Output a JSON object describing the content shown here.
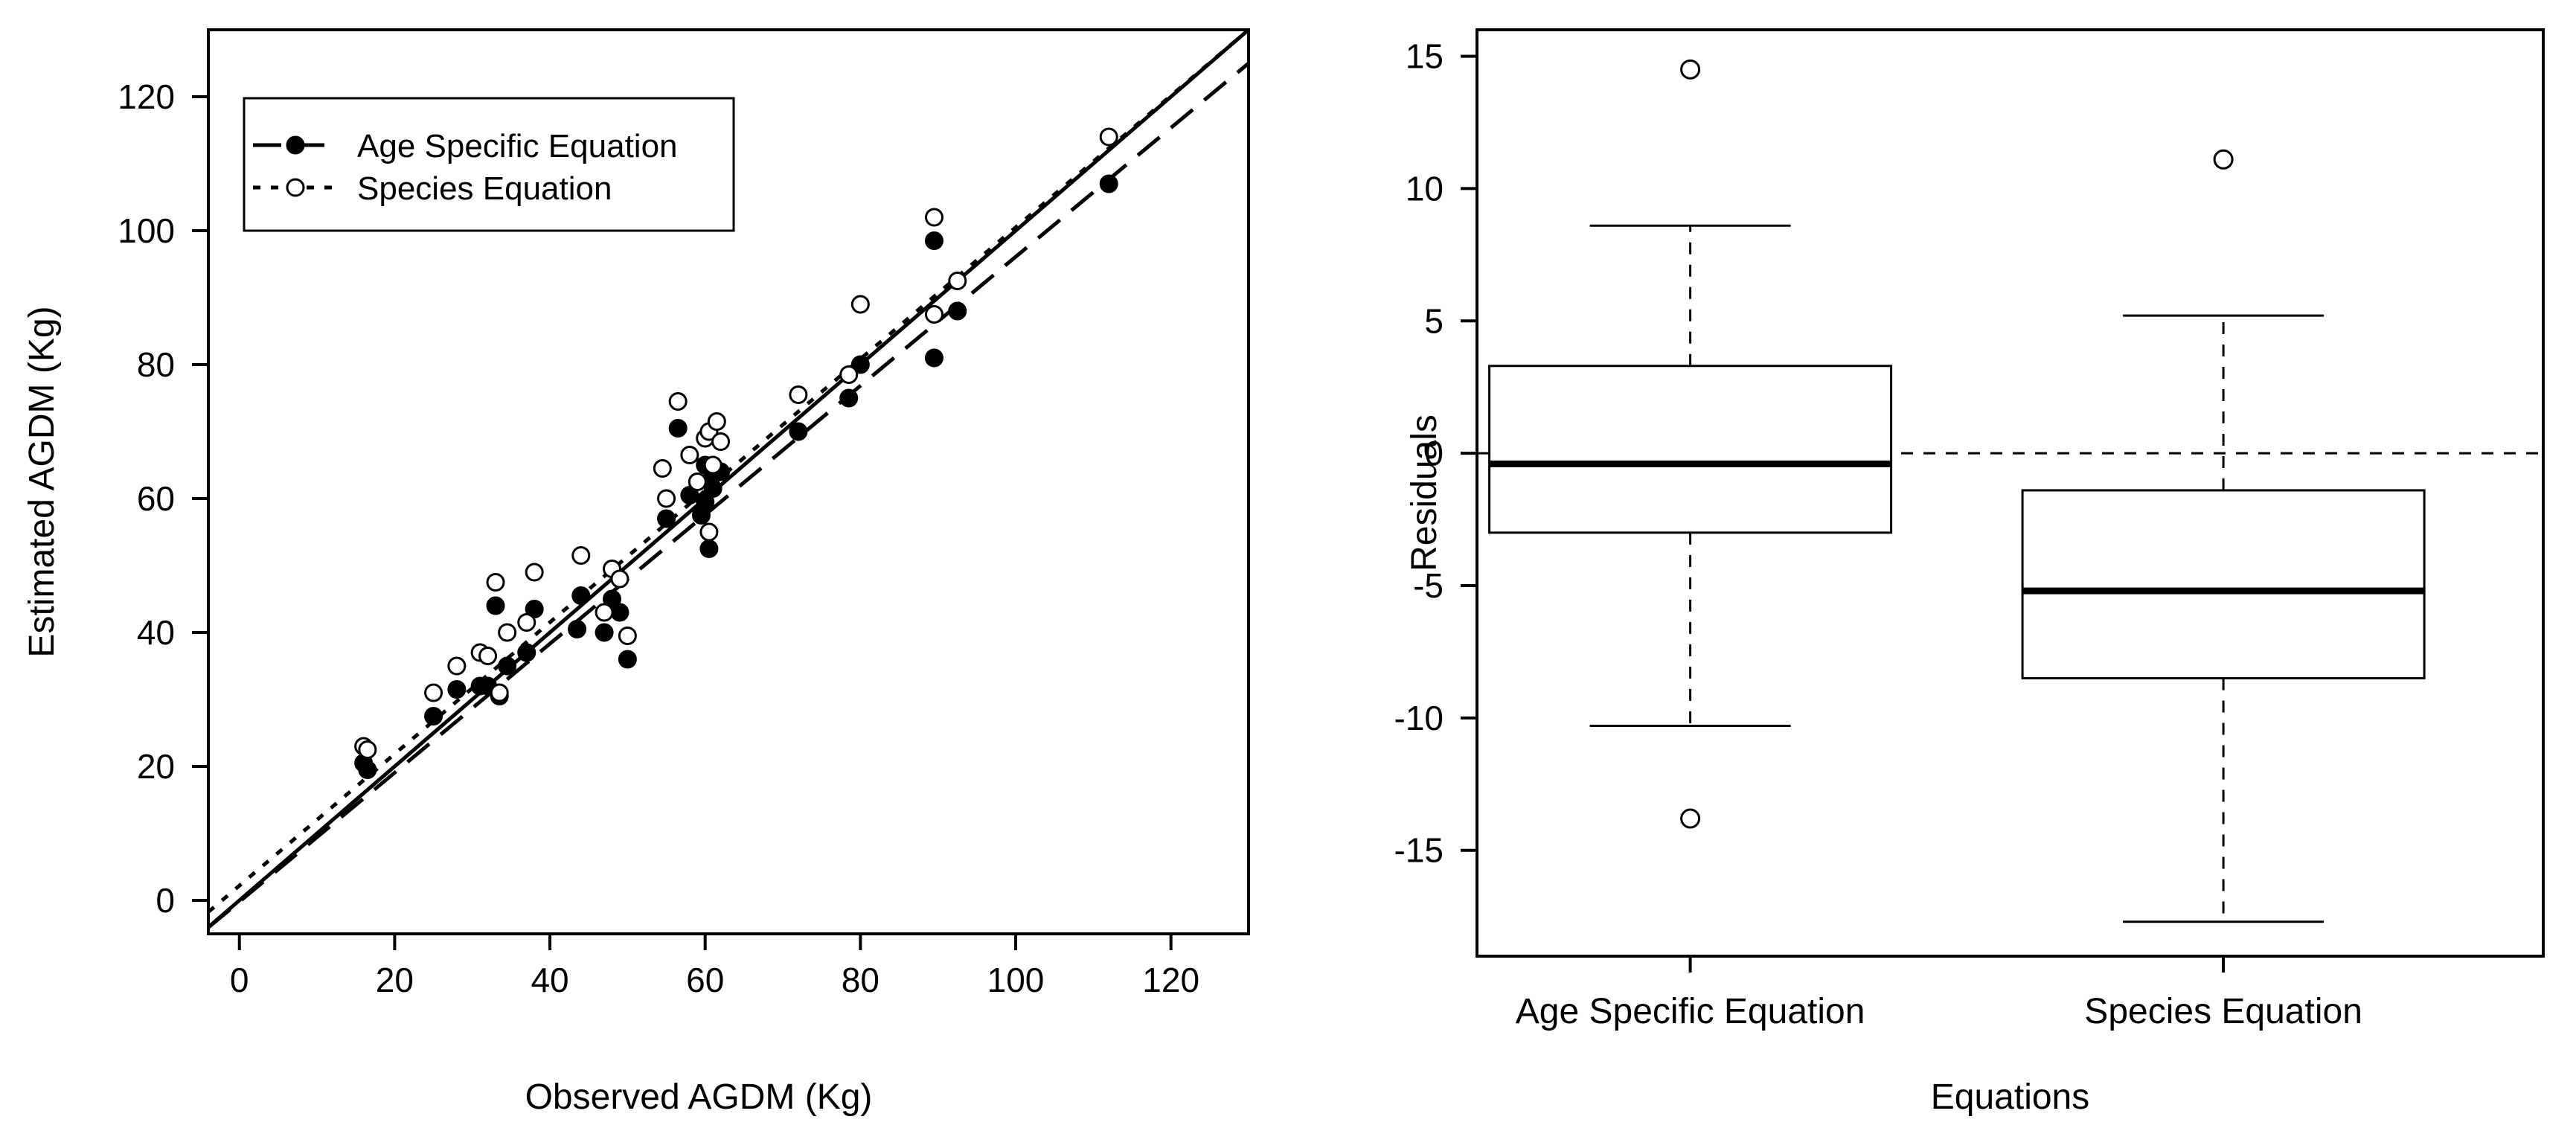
{
  "chart_data": [
    {
      "type": "scatter",
      "xlabel": "Observed AGDM  (Kg)",
      "ylabel": "Estimated AGDM (Kg)",
      "xlim": [
        -4,
        130
      ],
      "ylim": [
        -5,
        130
      ],
      "xticks": [
        0,
        20,
        40,
        60,
        80,
        100,
        120
      ],
      "yticks": [
        0,
        20,
        40,
        60,
        80,
        100,
        120
      ],
      "legend": {
        "position": "top-left",
        "entries": [
          {
            "label": "Age Specific Equation",
            "marker": "filled-circle",
            "line": "long-dash"
          },
          {
            "label": "Species Equation",
            "marker": "open-circle",
            "line": "dotted"
          }
        ]
      },
      "reference_lines": [
        {
          "name": "1:1 line",
          "style": "solid",
          "intercept": 0,
          "slope": 1
        },
        {
          "name": "Age Specific Equation fit",
          "style": "dashed",
          "intercept": -0.2,
          "slope": 0.963
        },
        {
          "name": "Species Equation fit",
          "style": "dotted",
          "intercept": 2.2,
          "slope": 0.983
        }
      ],
      "series": [
        {
          "name": "Age Specific Equation",
          "marker": "filled",
          "points": [
            [
              16,
              20.5
            ],
            [
              16.5,
              19.5
            ],
            [
              25,
              27.5
            ],
            [
              28,
              31.5
            ],
            [
              31,
              32
            ],
            [
              32,
              32
            ],
            [
              33,
              44
            ],
            [
              33.5,
              30.5
            ],
            [
              34.5,
              35
            ],
            [
              37,
              37
            ],
            [
              38,
              43.5
            ],
            [
              43.5,
              40.5
            ],
            [
              44,
              45.5
            ],
            [
              47,
              40
            ],
            [
              48,
              45
            ],
            [
              49,
              43
            ],
            [
              50,
              36
            ],
            [
              55,
              57
            ],
            [
              56.5,
              70.5
            ],
            [
              58,
              60.5
            ],
            [
              59.5,
              57.5
            ],
            [
              60,
              59.5
            ],
            [
              60,
              65
            ],
            [
              60.5,
              52.5
            ],
            [
              61,
              61.5
            ],
            [
              61,
              63.5
            ],
            [
              62,
              64
            ],
            [
              72,
              70
            ],
            [
              78.5,
              75
            ],
            [
              80,
              80
            ],
            [
              89.5,
              98.5
            ],
            [
              89.5,
              81
            ],
            [
              92.5,
              88
            ],
            [
              112,
              107
            ]
          ]
        },
        {
          "name": "Species Equation",
          "marker": "open",
          "points": [
            [
              16,
              23
            ],
            [
              16.5,
              22.5
            ],
            [
              25,
              31
            ],
            [
              28,
              35
            ],
            [
              31,
              37
            ],
            [
              32,
              36.5
            ],
            [
              33,
              47.5
            ],
            [
              33.5,
              31
            ],
            [
              34.5,
              40
            ],
            [
              37,
              41.5
            ],
            [
              38,
              49
            ],
            [
              44,
              51.5
            ],
            [
              47,
              43
            ],
            [
              48,
              49.5
            ],
            [
              49,
              48
            ],
            [
              50,
              39.5
            ],
            [
              54.5,
              64.5
            ],
            [
              55,
              60
            ],
            [
              56.5,
              74.5
            ],
            [
              58,
              66.5
            ],
            [
              59,
              62.5
            ],
            [
              60,
              69
            ],
            [
              60.5,
              55
            ],
            [
              60.5,
              70
            ],
            [
              61,
              65
            ],
            [
              61.5,
              71.5
            ],
            [
              62,
              68.5
            ],
            [
              72,
              75.5
            ],
            [
              78.5,
              78.5
            ],
            [
              80,
              89
            ],
            [
              89.5,
              102
            ],
            [
              89.5,
              87.5
            ],
            [
              92.5,
              92.5
            ],
            [
              112,
              114
            ]
          ]
        }
      ]
    },
    {
      "type": "boxplot",
      "xlabel": "Equations",
      "ylabel": "Residuals",
      "ylim": [
        -19,
        16
      ],
      "yticks": [
        15,
        10,
        5,
        0,
        -5,
        -10,
        -15
      ],
      "reference_line": {
        "y": 0,
        "style": "dashed"
      },
      "categories": [
        "Age Specific Equation",
        "Species Equation"
      ],
      "boxes": [
        {
          "name": "Age Specific Equation",
          "whisker_low": -10.3,
          "q1": -3.0,
          "median": -0.4,
          "q3": 3.3,
          "whisker_high": 8.6,
          "outliers": [
            14.5,
            -13.8
          ]
        },
        {
          "name": "Species Equation",
          "whisker_low": -17.7,
          "q1": -8.5,
          "median": -5.2,
          "q3": -1.4,
          "whisker_high": 5.2,
          "outliers": [
            11.1
          ]
        }
      ]
    }
  ]
}
